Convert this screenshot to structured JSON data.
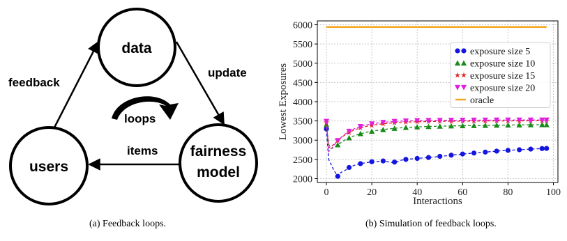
{
  "diagram": {
    "nodes": {
      "data": "data",
      "users": "users",
      "fairness": "fairness",
      "model": "model"
    },
    "edges": {
      "feedback": "feedback",
      "update": "update",
      "items": "items",
      "loops": "loops"
    }
  },
  "captions": {
    "a": "(a)  Feedback loops.",
    "b": "(b)  Simulation of feedback loops."
  },
  "chart_data": {
    "type": "line",
    "xlabel": "Interactions",
    "ylabel": "Lowest Exposures",
    "xlim": [
      -4,
      102
    ],
    "ylim": [
      1900,
      6100
    ],
    "xticks": [
      0,
      20,
      40,
      60,
      80,
      100
    ],
    "yticks": [
      2000,
      2500,
      3000,
      3500,
      4000,
      4500,
      5000,
      5500,
      6000
    ],
    "grid": true,
    "legend_position": "right",
    "x": [
      0,
      1,
      2,
      3,
      4,
      5,
      6,
      7,
      8,
      9,
      10,
      11,
      12,
      13,
      14,
      15,
      16,
      17,
      18,
      19,
      20,
      21,
      22,
      23,
      24,
      25,
      26,
      27,
      28,
      29,
      30,
      31,
      32,
      33,
      34,
      35,
      36,
      37,
      38,
      39,
      40,
      41,
      42,
      43,
      44,
      45,
      46,
      47,
      48,
      49,
      50,
      51,
      52,
      53,
      54,
      55,
      56,
      57,
      58,
      59,
      60,
      61,
      62,
      63,
      64,
      65,
      66,
      67,
      68,
      69,
      70,
      71,
      72,
      73,
      74,
      75,
      76,
      77,
      78,
      79,
      80,
      81,
      82,
      83,
      84,
      85,
      86,
      87,
      88,
      89,
      90,
      91,
      92,
      93,
      94,
      95,
      96,
      97
    ],
    "series": [
      {
        "name": "exposure size 5",
        "color": "#1515e0",
        "marker": "circle",
        "dashed": true,
        "marker_every": 5,
        "values": [
          3290,
          2500,
          2380,
          2250,
          2150,
          2060,
          2140,
          2180,
          2210,
          2240,
          2290,
          2320,
          2340,
          2360,
          2380,
          2390,
          2400,
          2410,
          2420,
          2430,
          2440,
          2440,
          2445,
          2450,
          2450,
          2460,
          2450,
          2440,
          2430,
          2420,
          2430,
          2440,
          2460,
          2480,
          2490,
          2500,
          2505,
          2510,
          2515,
          2520,
          2525,
          2530,
          2535,
          2540,
          2545,
          2550,
          2555,
          2560,
          2565,
          2570,
          2580,
          2585,
          2590,
          2595,
          2600,
          2610,
          2615,
          2620,
          2625,
          2630,
          2640,
          2645,
          2650,
          2655,
          2660,
          2665,
          2670,
          2675,
          2680,
          2685,
          2690,
          2695,
          2700,
          2705,
          2710,
          2715,
          2720,
          2725,
          2728,
          2731,
          2735,
          2738,
          2741,
          2745,
          2748,
          2751,
          2755,
          2758,
          2761,
          2765,
          2768,
          2771,
          2774,
          2777,
          2780,
          2782,
          2784,
          2786
        ]
      },
      {
        "name": "exposure size 10",
        "color": "#1a8a1a",
        "marker": "triangle-up",
        "dashed": true,
        "marker_every": 5,
        "values": [
          3400,
          2900,
          2780,
          2800,
          2840,
          2880,
          2920,
          2960,
          3000,
          3030,
          3060,
          3090,
          3110,
          3130,
          3150,
          3170,
          3180,
          3195,
          3210,
          3220,
          3230,
          3240,
          3250,
          3258,
          3266,
          3274,
          3282,
          3290,
          3296,
          3302,
          3308,
          3313,
          3318,
          3322,
          3326,
          3330,
          3333,
          3336,
          3339,
          3342,
          3345,
          3347,
          3349,
          3351,
          3353,
          3355,
          3357,
          3359,
          3360,
          3362,
          3363,
          3365,
          3366,
          3368,
          3369,
          3370,
          3371,
          3372,
          3373,
          3374,
          3375,
          3376,
          3377,
          3378,
          3379,
          3380,
          3381,
          3382,
          3383,
          3384,
          3385,
          3386,
          3386,
          3387,
          3388,
          3389,
          3390,
          3391,
          3391,
          3392,
          3393,
          3394,
          3394,
          3395,
          3396,
          3396,
          3397,
          3398,
          3398,
          3399,
          3400,
          3400,
          3401,
          3401,
          3402,
          3402,
          3403,
          3403
        ]
      },
      {
        "name": "exposure size 15",
        "color": "#e02020",
        "marker": "star",
        "dashed": true,
        "marker_every": 5,
        "values": [
          3460,
          2800,
          2830,
          2880,
          2930,
          2990,
          3040,
          3090,
          3130,
          3170,
          3200,
          3230,
          3260,
          3280,
          3300,
          3320,
          3335,
          3350,
          3362,
          3374,
          3385,
          3394,
          3402,
          3410,
          3417,
          3424,
          3430,
          3436,
          3441,
          3446,
          3450,
          3454,
          3458,
          3461,
          3464,
          3467,
          3470,
          3472,
          3474,
          3476,
          3478,
          3480,
          3481,
          3483,
          3484,
          3485,
          3486,
          3487,
          3488,
          3489,
          3490,
          3491,
          3491,
          3492,
          3493,
          3493,
          3494,
          3494,
          3495,
          3495,
          3496,
          3496,
          3497,
          3497,
          3497,
          3498,
          3498,
          3498,
          3499,
          3499,
          3499,
          3500,
          3500,
          3500,
          3500,
          3501,
          3501,
          3501,
          3501,
          3502,
          3502,
          3502,
          3502,
          3502,
          3503,
          3503,
          3503,
          3503,
          3503,
          3503,
          3504,
          3504,
          3504,
          3504,
          3504,
          3504,
          3504,
          3505
        ]
      },
      {
        "name": "exposure size 20",
        "color": "#e020e0",
        "marker": "triangle-down",
        "dashed": true,
        "marker_every": 5,
        "values": [
          3490,
          2700,
          2760,
          2840,
          2920,
          2990,
          3050,
          3100,
          3150,
          3190,
          3230,
          3260,
          3290,
          3315,
          3335,
          3355,
          3372,
          3388,
          3401,
          3413,
          3424,
          3434,
          3442,
          3450,
          3457,
          3463,
          3469,
          3474,
          3478,
          3482,
          3486,
          3489,
          3492,
          3495,
          3497,
          3499,
          3501,
          3503,
          3504,
          3506,
          3507,
          3508,
          3509,
          3510,
          3511,
          3512,
          3513,
          3513,
          3514,
          3514,
          3515,
          3515,
          3516,
          3516,
          3517,
          3517,
          3517,
          3518,
          3518,
          3518,
          3519,
          3519,
          3519,
          3519,
          3520,
          3520,
          3520,
          3520,
          3520,
          3521,
          3521,
          3521,
          3521,
          3521,
          3521,
          3522,
          3522,
          3522,
          3522,
          3522,
          3522,
          3522,
          3522,
          3523,
          3523,
          3523,
          3523,
          3523,
          3523,
          3523,
          3523,
          3523,
          3523,
          3524,
          3524,
          3524,
          3524,
          3524
        ]
      },
      {
        "name": "oracle",
        "color": "#f5a623",
        "marker": "none",
        "dashed": false,
        "values": [
          5940,
          5940,
          5940,
          5940,
          5940,
          5940,
          5940,
          5940,
          5940,
          5940,
          5940,
          5940,
          5940,
          5940,
          5940,
          5940,
          5940,
          5940,
          5940,
          5940,
          5940,
          5940,
          5940,
          5940,
          5940,
          5940,
          5940,
          5940,
          5940,
          5940,
          5940,
          5940,
          5940,
          5940,
          5940,
          5940,
          5940,
          5940,
          5940,
          5940,
          5940,
          5940,
          5940,
          5940,
          5940,
          5940,
          5940,
          5940,
          5940,
          5940,
          5940,
          5940,
          5940,
          5940,
          5940,
          5940,
          5940,
          5940,
          5940,
          5940,
          5940,
          5940,
          5940,
          5940,
          5940,
          5940,
          5940,
          5940,
          5940,
          5940,
          5940,
          5940,
          5940,
          5940,
          5940,
          5940,
          5940,
          5940,
          5940,
          5940,
          5940,
          5940,
          5940,
          5940,
          5940,
          5940,
          5940,
          5940,
          5940,
          5940,
          5940,
          5940,
          5940,
          5940,
          5940,
          5940,
          5940,
          5940
        ]
      }
    ]
  }
}
